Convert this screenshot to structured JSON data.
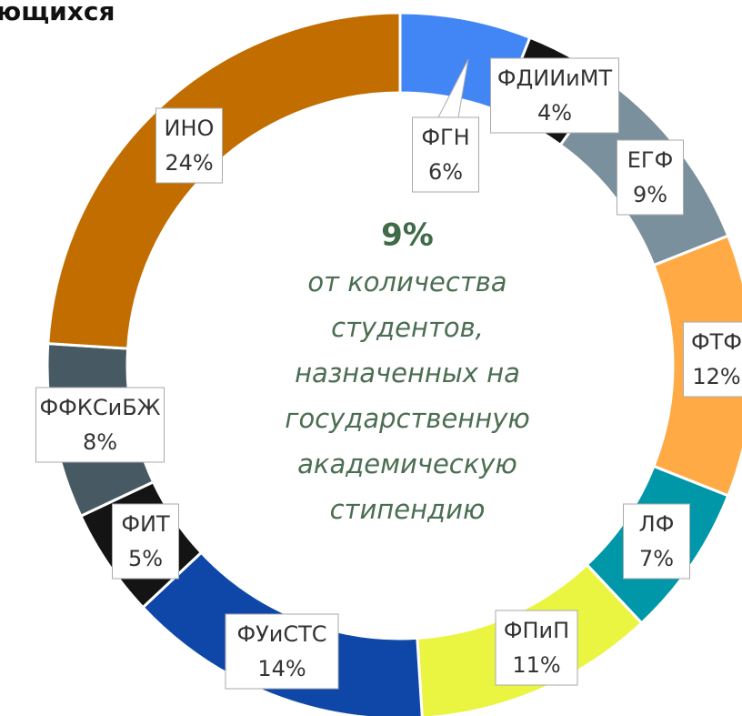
{
  "chart_data": {
    "type": "donut",
    "title": "ющихся",
    "categories": [
      "ФГН",
      "ФДИИиМТ",
      "ЕГФ",
      "ФТФ",
      "ЛФ",
      "ФПиП",
      "ФУиСТС",
      "ФИТ",
      "ФФКСиБЖ",
      "ИНО"
    ],
    "values": [
      6,
      4,
      9,
      12,
      7,
      11,
      14,
      5,
      8,
      24
    ],
    "value_labels": [
      "6%",
      "4%",
      "9%",
      "12%",
      "7%",
      "11%",
      "14%",
      "5%",
      "8%",
      "24%"
    ],
    "colors": [
      "#4285f4",
      "#141414",
      "#7b909d",
      "#ffaa44",
      "#0098a8",
      "#eaf542",
      "#0e47a8",
      "#141414",
      "#475a64",
      "#c26d00"
    ],
    "center_value": "9%",
    "center_text": [
      "от количества",
      "студентов,",
      "назначенных на",
      "государственную",
      "академическую",
      "стипендию"
    ]
  }
}
